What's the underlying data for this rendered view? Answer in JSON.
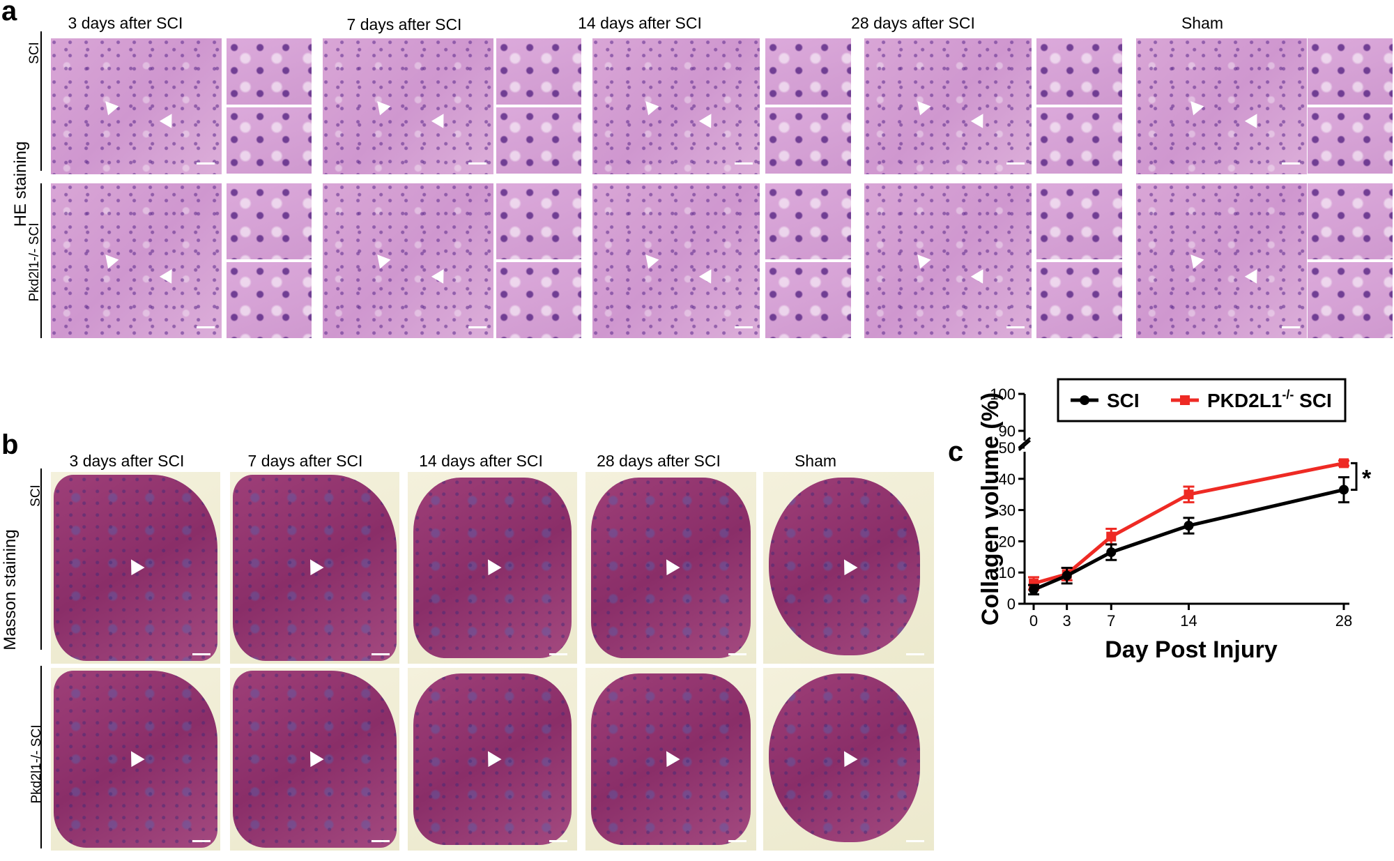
{
  "panel_a": {
    "letter": "a",
    "stain_label": "HE staining",
    "row_labels": [
      "SCI",
      "Pkd2l1-/- SCI"
    ],
    "columns": [
      "3 days after SCI",
      "7 days after SCI",
      "14 days after SCI",
      "28 days after SCI",
      "Sham"
    ]
  },
  "panel_b": {
    "letter": "b",
    "stain_label": "Masson staining",
    "row_labels": [
      "SCI",
      "Pkd2l1-/-  SCI"
    ],
    "columns": [
      "3 days after SCI",
      "7 days after SCI",
      "14 days after SCI",
      "28 days after SCI",
      "Sham"
    ]
  },
  "panel_c": {
    "letter": "c",
    "colors": {
      "SCI": "#000000",
      "PKD2L1": "#ee2a24"
    },
    "significance": "*",
    "chart_data": {
      "type": "line",
      "xlabel": "Day Post Injury",
      "ylabel": "Collagen volume (%)",
      "x": [
        0,
        3,
        7,
        14,
        28
      ],
      "x_ticks": [
        0,
        3,
        7,
        14,
        28
      ],
      "y_ticks_lower": [
        0,
        10,
        20,
        30,
        40,
        50
      ],
      "y_ticks_upper": [
        90,
        100
      ],
      "ylim": [
        0,
        100
      ],
      "y_break": [
        50,
        90
      ],
      "legend_position": "top",
      "legend": [
        {
          "label": "SCI",
          "marker": "circle"
        },
        {
          "label_main": "PKD2L1",
          "label_sup": "-/-",
          "label_tail": " SCI",
          "marker": "square"
        }
      ],
      "series": [
        {
          "values": [
            4.5,
            9,
            16.5,
            25,
            36.5
          ],
          "errors": [
            1.5,
            2.5,
            2.5,
            2.5,
            4
          ]
        },
        {
          "values": [
            6.5,
            9.5,
            21.5,
            35,
            45
          ],
          "errors": [
            2,
            2,
            2.5,
            2.5,
            0.8
          ]
        }
      ]
    }
  }
}
